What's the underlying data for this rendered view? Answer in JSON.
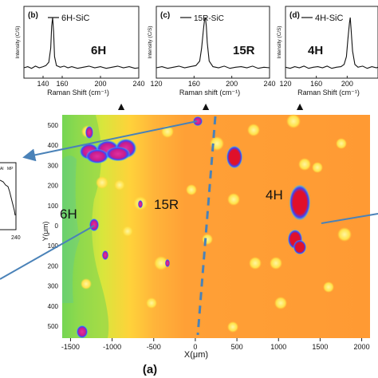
{
  "chart_data": [
    {
      "type": "line",
      "panel_label": "(b)",
      "legend": "6H-SiC",
      "polytype": "6H",
      "ylabel": "Intensity (C/S)",
      "xlabel": "Raman Shift (cm⁻¹)",
      "xlim": [
        120,
        240
      ],
      "xticks": [
        140,
        160,
        200,
        240
      ],
      "peak": {
        "x": 150
      },
      "x": [
        120,
        124,
        128,
        132,
        136,
        140,
        143,
        146,
        148,
        149,
        150,
        151,
        152,
        154,
        158,
        162,
        166,
        170,
        176,
        182,
        188,
        194,
        200,
        206,
        212,
        218,
        224,
        230,
        236,
        240
      ],
      "values": [
        0.1,
        0.12,
        0.09,
        0.13,
        0.1,
        0.12,
        0.14,
        0.2,
        0.45,
        0.85,
        1.0,
        0.75,
        0.3,
        0.14,
        0.11,
        0.13,
        0.1,
        0.12,
        0.09,
        0.11,
        0.13,
        0.1,
        0.12,
        0.09,
        0.11,
        0.13,
        0.1,
        0.12,
        0.09,
        0.1
      ]
    },
    {
      "type": "line",
      "panel_label": "(c)",
      "legend": "15R-SiC",
      "polytype": "15R",
      "ylabel": "Intensity (C/S)",
      "xlabel": "Raman shift (cm⁻¹)",
      "xlim": [
        120,
        240
      ],
      "xticks": [
        120,
        160,
        200,
        240
      ],
      "peak": {
        "x": 172
      },
      "x": [
        120,
        126,
        132,
        138,
        144,
        150,
        156,
        162,
        166,
        168,
        170,
        171,
        172,
        173,
        174,
        176,
        180,
        186,
        192,
        198,
        204,
        210,
        216,
        222,
        228,
        234,
        240
      ],
      "values": [
        0.1,
        0.12,
        0.09,
        0.11,
        0.13,
        0.1,
        0.12,
        0.14,
        0.22,
        0.45,
        0.8,
        0.95,
        1.0,
        0.85,
        0.55,
        0.22,
        0.12,
        0.1,
        0.13,
        0.09,
        0.11,
        0.12,
        0.1,
        0.13,
        0.09,
        0.11,
        0.1
      ]
    },
    {
      "type": "line",
      "panel_label": "(d)",
      "legend": "4H-SiC",
      "polytype": "4H",
      "ylabel": "Intensity (C/S)",
      "xlabel": "Raman Shift (cm⁻¹)",
      "xlim": [
        120,
        240
      ],
      "xticks": [
        120,
        160,
        200
      ],
      "peak": {
        "x": 204
      },
      "x": [
        120,
        126,
        132,
        138,
        144,
        150,
        156,
        162,
        168,
        174,
        180,
        186,
        192,
        196,
        199,
        201,
        203,
        204,
        205,
        207,
        210,
        214,
        220,
        226,
        232,
        238,
        240
      ],
      "values": [
        0.11,
        0.09,
        0.12,
        0.1,
        0.13,
        0.09,
        0.11,
        0.12,
        0.1,
        0.13,
        0.09,
        0.11,
        0.12,
        0.16,
        0.3,
        0.62,
        0.9,
        1.0,
        0.8,
        0.4,
        0.16,
        0.11,
        0.13,
        0.09,
        0.12,
        0.1,
        0.11
      ]
    },
    {
      "type": "heatmap",
      "panel_label": "(a)",
      "xlabel": "X(μm)",
      "ylabel": "Y(μm)",
      "xlim": [
        -1600,
        2100
      ],
      "xticks": [
        -1500,
        -1000,
        -500,
        0,
        500,
        1000,
        1500,
        2000
      ],
      "yticks_left": [
        500,
        400,
        300,
        200,
        100,
        0,
        100,
        200,
        300,
        400,
        500
      ],
      "region_labels": [
        "6H",
        "15R",
        "4H"
      ],
      "boundary": {
        "from_x": 260,
        "to_x": -10
      }
    }
  ],
  "annotations": {
    "up_arrows": [
      "▲",
      "▲",
      "▲"
    ],
    "side_inset_ticks": [
      "Al",
      "MP"
    ],
    "side_inset_axis": "240"
  },
  "colors": {
    "map_orange": "#ff9a33",
    "map_yellow": "#ffd23a",
    "map_green": "#b8e04a",
    "pocket_red": "#e0102a",
    "pocket_magenta": "#d0208c",
    "pocket_blue": "#3a44ff",
    "arrow_blue": "#4a82b8"
  }
}
